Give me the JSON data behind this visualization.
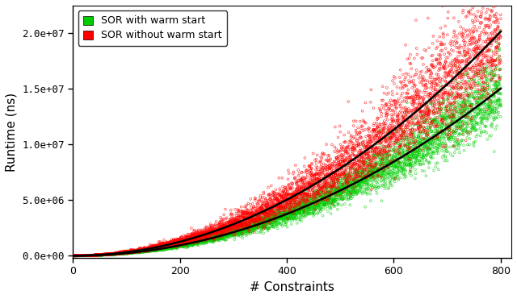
{
  "title": "",
  "xlabel": "# Constraints",
  "ylabel": "Runtime (ns)",
  "xlim": [
    0,
    820
  ],
  "ylim": [
    -200000.0,
    22500000.0
  ],
  "yticks": [
    0,
    5000000.0,
    10000000.0,
    15000000.0,
    20000000.0
  ],
  "ytick_labels": [
    "0.0e+00",
    "5.0e+06",
    "1.0e+07",
    "1.5e+07",
    "2.0e+07"
  ],
  "xticks": [
    0,
    200,
    400,
    600,
    800
  ],
  "legend_labels": [
    "SOR with warm start",
    "SOR without warm start"
  ],
  "legend_colors": [
    "#00cc00",
    "#ff0000"
  ],
  "scatter_color_green": "#00cc00",
  "scatter_color_red": "#ff0000",
  "fit_color": "#000000",
  "background_color": "#ffffff",
  "n_x": 800,
  "n_repeats": 7,
  "seed": 42,
  "green_coef_a": 23.5,
  "green_coef_b": 2.0,
  "red_coef_a": 31.5,
  "red_coef_b": 2.0,
  "noise_scale_green": 0.12,
  "noise_scale_red": 0.15
}
